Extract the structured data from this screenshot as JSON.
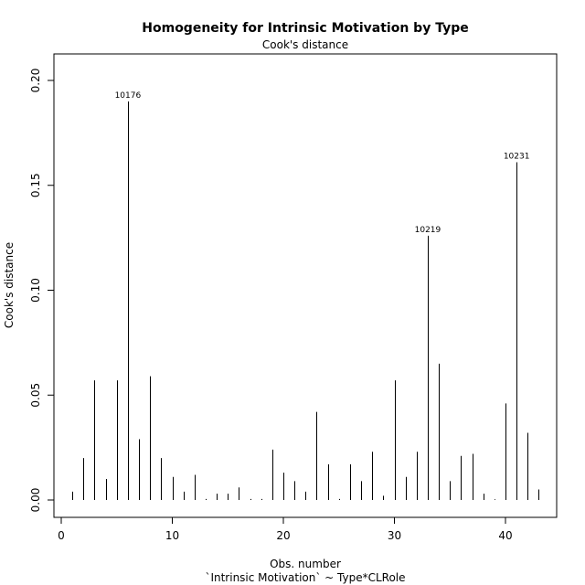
{
  "chart_data": {
    "type": "bar",
    "title": "Homogeneity for Intrinsic Motivation by Type",
    "subtitle": "Cook's distance",
    "xlabel": "Obs. number",
    "xlabel2": "`Intrinsic Motivation` ~ Type*CLRole",
    "ylabel": "Cook's distance",
    "xlim": [
      0,
      45
    ],
    "ylim": [
      0,
      0.2
    ],
    "xticks": [
      "0",
      "10",
      "20",
      "30",
      "40"
    ],
    "yticks": [
      "0.00",
      "0.05",
      "0.10",
      "0.15",
      "0.20"
    ],
    "x": [
      1,
      2,
      3,
      4,
      5,
      6,
      7,
      8,
      9,
      10,
      11,
      12,
      13,
      14,
      15,
      16,
      17,
      18,
      19,
      20,
      21,
      22,
      23,
      24,
      25,
      26,
      27,
      28,
      29,
      30,
      31,
      32,
      33,
      34,
      35,
      36,
      37,
      38,
      39,
      40,
      41,
      42,
      43
    ],
    "values": [
      0.004,
      0.02,
      0.057,
      0.01,
      0.057,
      0.19,
      0.029,
      0.059,
      0.02,
      0.011,
      0.004,
      0.012,
      0.0005,
      0.003,
      0.003,
      0.006,
      0.0005,
      0.0005,
      0.024,
      0.013,
      0.009,
      0.004,
      0.042,
      0.017,
      0.0005,
      0.017,
      0.009,
      0.023,
      0.002,
      0.057,
      0.011,
      0.023,
      0.126,
      0.065,
      0.009,
      0.021,
      0.022,
      0.003,
      0.0003,
      0.046,
      0.161,
      0.032,
      0.005
    ],
    "annotations": [
      {
        "x": 6,
        "label": "10176"
      },
      {
        "x": 33,
        "label": "10219"
      },
      {
        "x": 41,
        "label": "10231"
      }
    ],
    "grid": false,
    "legend": false
  }
}
